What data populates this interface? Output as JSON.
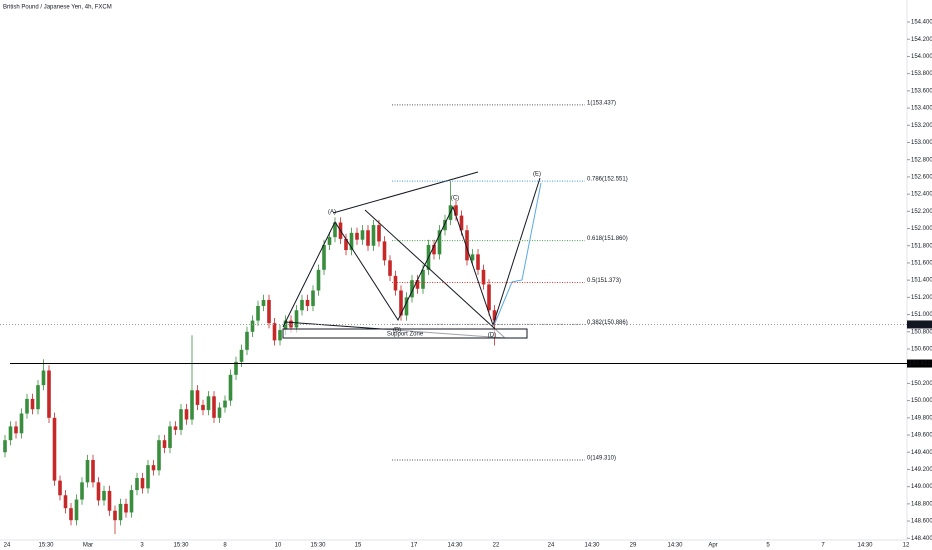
{
  "chart_data": {
    "type": "candlestick",
    "title": "British Pound / Japanese Yen, 4h, FXCM",
    "up_color": "#388e3c",
    "down_color": "#c62828",
    "open": [
      149.4,
      149.54,
      149.7,
      149.62,
      149.85,
      150.02,
      149.9,
      150.18,
      150.35,
      149.8,
      149.07,
      148.9,
      148.75,
      148.61,
      148.85,
      149.05,
      149.31,
      149.05,
      148.84,
      148.95,
      148.72,
      148.61,
      148.8,
      148.7,
      148.96,
      149.1,
      148.98,
      149.25,
      149.19,
      149.54,
      149.45,
      149.7,
      149.66,
      149.9,
      149.78,
      150.12,
      149.95,
      149.89,
      150.05,
      149.8,
      149.92,
      150.0,
      150.3,
      150.45,
      150.59,
      150.8,
      150.93,
      151.1,
      151.17,
      150.9,
      150.7,
      150.82,
      150.93,
      150.85,
      151.05,
      151.17,
      151.1,
      151.28,
      151.52,
      151.81,
      151.9,
      152.07,
      151.88,
      151.75,
      151.95,
      151.87,
      151.98,
      151.8,
      152.04,
      151.85,
      151.63,
      151.45,
      151.28,
      150.99,
      151.2,
      151.4,
      151.3,
      151.52,
      151.81,
      151.7,
      151.98,
      152.1,
      152.27,
      152.15,
      151.98,
      151.63,
      151.7,
      151.52,
      151.35,
      151.05
    ],
    "high": [
      149.6,
      149.76,
      149.76,
      149.91,
      150.08,
      150.08,
      150.24,
      150.48,
      150.41,
      149.86,
      149.13,
      148.96,
      148.81,
      148.91,
      149.11,
      149.37,
      149.37,
      149.11,
      149.01,
      149.01,
      148.78,
      148.86,
      148.86,
      149.02,
      149.16,
      149.16,
      149.31,
      149.31,
      149.6,
      149.6,
      149.76,
      149.76,
      149.96,
      149.96,
      150.76,
      150.18,
      150.01,
      150.11,
      150.11,
      149.98,
      150.06,
      150.36,
      150.51,
      150.65,
      150.86,
      150.99,
      151.16,
      151.23,
      151.23,
      150.96,
      150.88,
      150.99,
      150.99,
      151.11,
      151.23,
      151.23,
      151.34,
      151.58,
      151.87,
      151.96,
      152.13,
      152.13,
      151.94,
      152.01,
      152.01,
      152.04,
      152.04,
      152.1,
      152.1,
      151.91,
      151.69,
      151.51,
      151.34,
      151.26,
      151.46,
      151.46,
      151.58,
      151.87,
      151.87,
      152.04,
      152.16,
      152.55,
      152.33,
      152.21,
      152.04,
      151.76,
      151.76,
      151.58,
      151.41,
      151.11
    ],
    "low": [
      149.34,
      149.48,
      149.56,
      149.56,
      149.79,
      149.84,
      149.84,
      150.12,
      149.74,
      149.01,
      148.84,
      148.69,
      148.55,
      148.55,
      148.79,
      148.99,
      148.99,
      148.78,
      148.78,
      148.66,
      148.45,
      148.55,
      148.64,
      148.64,
      148.9,
      148.92,
      148.92,
      149.13,
      149.13,
      149.39,
      149.39,
      149.6,
      149.6,
      149.72,
      149.72,
      149.89,
      149.83,
      149.83,
      149.74,
      149.74,
      149.86,
      149.94,
      150.24,
      150.39,
      150.53,
      150.74,
      150.87,
      151.04,
      150.84,
      150.64,
      150.64,
      150.76,
      150.79,
      150.79,
      150.99,
      151.04,
      151.04,
      151.22,
      151.46,
      151.75,
      151.84,
      151.82,
      151.69,
      151.69,
      151.81,
      151.81,
      151.74,
      151.74,
      151.79,
      151.57,
      151.39,
      151.22,
      150.93,
      150.93,
      151.14,
      151.24,
      151.24,
      151.46,
      151.64,
      151.64,
      151.92,
      152.04,
      152.09,
      151.92,
      151.57,
      151.57,
      151.46,
      151.29,
      150.99,
      150.64
    ],
    "close": [
      149.54,
      149.7,
      149.62,
      149.85,
      150.02,
      149.9,
      150.18,
      150.35,
      149.8,
      149.07,
      148.9,
      148.75,
      148.61,
      148.85,
      149.05,
      149.31,
      149.05,
      148.84,
      148.95,
      148.72,
      148.61,
      148.8,
      148.7,
      148.96,
      149.1,
      148.98,
      149.25,
      149.19,
      149.54,
      149.45,
      149.7,
      149.66,
      149.9,
      149.78,
      150.12,
      149.95,
      149.89,
      150.05,
      149.8,
      149.92,
      150.0,
      150.3,
      150.45,
      150.59,
      150.8,
      150.93,
      151.1,
      151.17,
      150.9,
      150.7,
      150.82,
      150.93,
      150.85,
      151.05,
      151.17,
      151.1,
      151.28,
      151.52,
      151.81,
      151.9,
      152.07,
      151.88,
      151.75,
      151.95,
      151.87,
      151.98,
      151.8,
      152.04,
      151.85,
      151.63,
      151.45,
      151.28,
      150.99,
      151.2,
      151.4,
      151.3,
      151.52,
      151.81,
      151.7,
      151.98,
      152.1,
      152.27,
      152.15,
      151.98,
      151.63,
      151.7,
      151.52,
      151.35,
      151.05,
      150.93
    ],
    "ylim": [
      148.38,
      154.656
    ],
    "yticks": [
      {
        "value": 148.4,
        "label": "148.400"
      },
      {
        "value": 148.6,
        "label": "148.600"
      },
      {
        "value": 148.8,
        "label": "148.800"
      },
      {
        "value": 149.0,
        "label": "149.000"
      },
      {
        "value": 149.2,
        "label": "149.200"
      },
      {
        "value": 149.4,
        "label": "149.400"
      },
      {
        "value": 149.6,
        "label": "149.600"
      },
      {
        "value": 149.8,
        "label": "149.800"
      },
      {
        "value": 150.0,
        "label": "150.000"
      },
      {
        "value": 150.2,
        "label": "150.200"
      },
      {
        "value": 150.6,
        "label": "150.600"
      },
      {
        "value": 150.8,
        "label": "150.800"
      },
      {
        "value": 151.0,
        "label": "151.000"
      },
      {
        "value": 151.2,
        "label": "151.200"
      },
      {
        "value": 151.4,
        "label": "151.400"
      },
      {
        "value": 151.6,
        "label": "151.600"
      },
      {
        "value": 151.8,
        "label": "151.800"
      },
      {
        "value": 152.0,
        "label": "152.000"
      },
      {
        "value": 152.2,
        "label": "152.200"
      },
      {
        "value": 152.4,
        "label": "152.400"
      },
      {
        "value": 152.6,
        "label": "152.600"
      },
      {
        "value": 152.8,
        "label": "152.800"
      },
      {
        "value": 153.0,
        "label": "153.000"
      },
      {
        "value": 153.2,
        "label": "153.200"
      },
      {
        "value": 153.4,
        "label": "153.400"
      },
      {
        "value": 153.6,
        "label": "153.600"
      },
      {
        "value": 153.8,
        "label": "153.800"
      },
      {
        "value": 154.0,
        "label": "154.000"
      },
      {
        "value": 154.2,
        "label": "154.200"
      },
      {
        "value": 154.4,
        "label": "154.400"
      }
    ],
    "xtick_labels": [
      "24",
      "15:30",
      "Mar",
      "3",
      "15:30",
      "8",
      "10",
      "15:30",
      "15",
      "17",
      "14:30",
      "22",
      "24",
      "14:30",
      "29",
      "14:30",
      "Apr",
      "5",
      "7",
      "14:30",
      "12"
    ],
    "price_lines": [
      {
        "value": 150.885,
        "color": "#131722"
      },
      {
        "value": 150.431,
        "color": "#000000"
      }
    ],
    "fib_levels": [
      {
        "label": "1(153.437)",
        "value": 153.437,
        "color": "#555555"
      },
      {
        "label": "0.786(152.551)",
        "value": 152.551,
        "color": "#3d9be0"
      },
      {
        "label": "0.618(151.860)",
        "value": 151.86,
        "color": "#43a047"
      },
      {
        "label": "0.5(151.373)",
        "value": 151.373,
        "color": "#e53935"
      },
      {
        "label": "0.382(150.886)",
        "value": 150.886,
        "color": "#777777"
      },
      {
        "label": "0(149.310)",
        "value": 149.31,
        "color": "#555555"
      }
    ],
    "wave_labels": [
      "(A)",
      "(B)",
      "(C)",
      "(D)",
      "(E)"
    ],
    "zone_label": "Support Zone"
  }
}
